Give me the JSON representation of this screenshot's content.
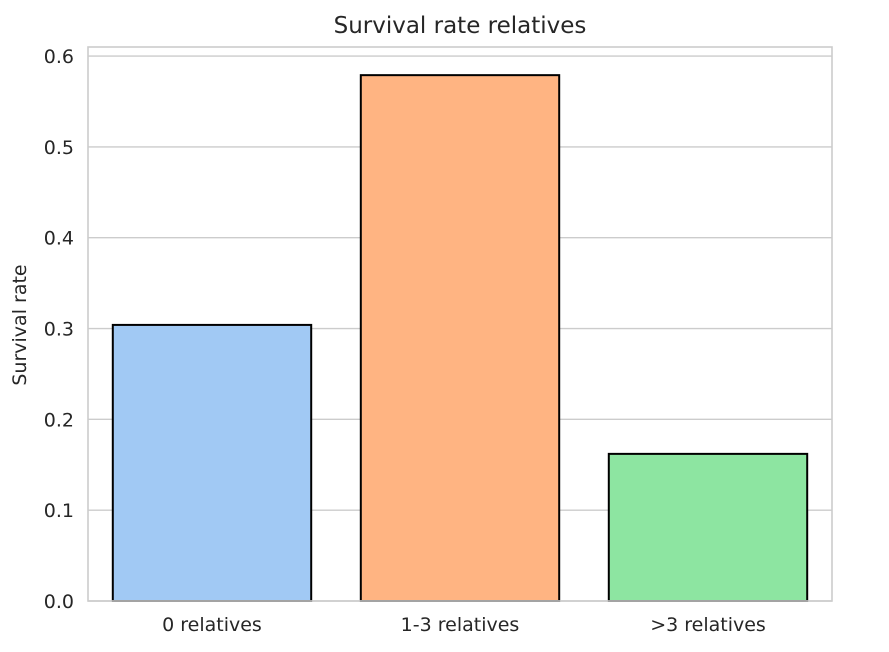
{
  "chart_data": {
    "type": "bar",
    "title": "Survival rate relatives",
    "xlabel": "",
    "ylabel": "Survival rate",
    "categories": [
      "0 relatives",
      "1-3 relatives",
      ">3 relatives"
    ],
    "values": [
      0.304,
      0.579,
      0.162
    ],
    "colors": [
      "#a1c9f4",
      "#ffb482",
      "#8de5a1"
    ],
    "bar_outline_color": "#000000",
    "ylim": [
      0,
      0.61
    ],
    "yticks": [
      0.0,
      0.1,
      0.2,
      0.3,
      0.4,
      0.5,
      0.6
    ],
    "ytick_labels": [
      "0.0",
      "0.1",
      "0.2",
      "0.3",
      "0.4",
      "0.5",
      "0.6"
    ],
    "grid": "horizontal",
    "legend": "none"
  }
}
